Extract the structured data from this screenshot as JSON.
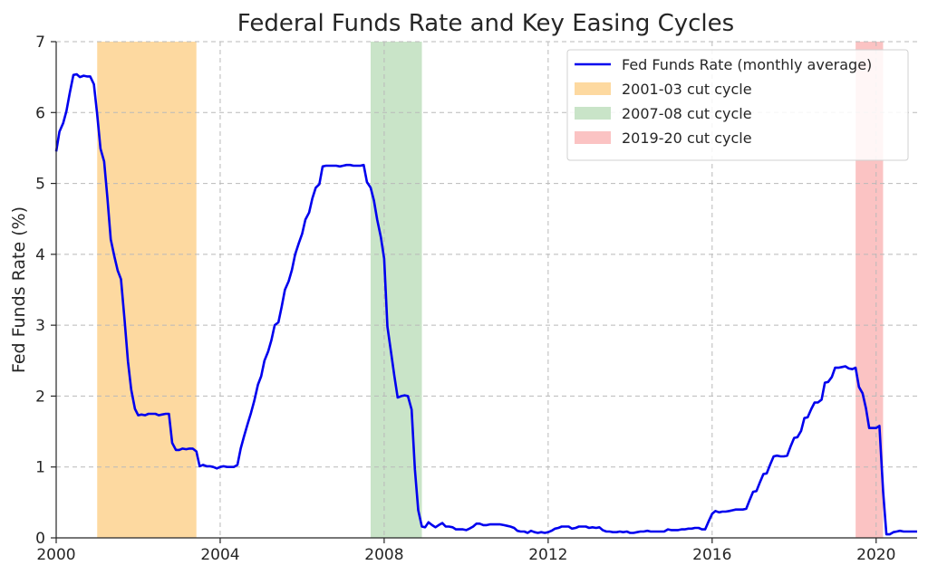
{
  "chart_data": {
    "type": "line",
    "title": "Federal Funds Rate and Key Easing Cycles",
    "xlabel": "",
    "ylabel": "Fed Funds Rate (%)",
    "xlim": [
      2000,
      2021
    ],
    "ylim": [
      0,
      7
    ],
    "x_ticks": [
      2000,
      2004,
      2008,
      2012,
      2016,
      2020
    ],
    "y_ticks": [
      0,
      1,
      2,
      3,
      4,
      5,
      6,
      7
    ],
    "grid": true,
    "legend_position": "top-right",
    "series": [
      {
        "name": "Fed Funds Rate (monthly average)",
        "color": "#0000ee",
        "points": [
          [
            2000.0,
            5.45
          ],
          [
            2000.08,
            5.73
          ],
          [
            2000.17,
            5.85
          ],
          [
            2000.25,
            6.02
          ],
          [
            2000.33,
            6.27
          ],
          [
            2000.42,
            6.53
          ],
          [
            2000.5,
            6.54
          ],
          [
            2000.58,
            6.5
          ],
          [
            2000.67,
            6.52
          ],
          [
            2000.75,
            6.51
          ],
          [
            2000.83,
            6.51
          ],
          [
            2000.92,
            6.4
          ],
          [
            2001.0,
            5.98
          ],
          [
            2001.08,
            5.49
          ],
          [
            2001.17,
            5.31
          ],
          [
            2001.25,
            4.8
          ],
          [
            2001.33,
            4.21
          ],
          [
            2001.42,
            3.97
          ],
          [
            2001.5,
            3.77
          ],
          [
            2001.58,
            3.65
          ],
          [
            2001.67,
            3.07
          ],
          [
            2001.75,
            2.49
          ],
          [
            2001.83,
            2.09
          ],
          [
            2001.92,
            1.82
          ],
          [
            2002.0,
            1.73
          ],
          [
            2002.08,
            1.74
          ],
          [
            2002.17,
            1.73
          ],
          [
            2002.25,
            1.75
          ],
          [
            2002.33,
            1.75
          ],
          [
            2002.42,
            1.75
          ],
          [
            2002.5,
            1.73
          ],
          [
            2002.58,
            1.74
          ],
          [
            2002.67,
            1.75
          ],
          [
            2002.75,
            1.75
          ],
          [
            2002.83,
            1.34
          ],
          [
            2002.92,
            1.24
          ],
          [
            2003.0,
            1.24
          ],
          [
            2003.08,
            1.26
          ],
          [
            2003.17,
            1.25
          ],
          [
            2003.25,
            1.26
          ],
          [
            2003.33,
            1.26
          ],
          [
            2003.42,
            1.22
          ],
          [
            2003.5,
            1.01
          ],
          [
            2003.58,
            1.03
          ],
          [
            2003.67,
            1.01
          ],
          [
            2003.75,
            1.01
          ],
          [
            2003.83,
            1.0
          ],
          [
            2003.92,
            0.98
          ],
          [
            2004.0,
            1.0
          ],
          [
            2004.08,
            1.01
          ],
          [
            2004.17,
            1.0
          ],
          [
            2004.25,
            1.0
          ],
          [
            2004.33,
            1.0
          ],
          [
            2004.42,
            1.03
          ],
          [
            2004.5,
            1.26
          ],
          [
            2004.58,
            1.43
          ],
          [
            2004.67,
            1.61
          ],
          [
            2004.75,
            1.76
          ],
          [
            2004.83,
            1.93
          ],
          [
            2004.92,
            2.16
          ],
          [
            2005.0,
            2.28
          ],
          [
            2005.08,
            2.5
          ],
          [
            2005.17,
            2.63
          ],
          [
            2005.25,
            2.79
          ],
          [
            2005.33,
            3.0
          ],
          [
            2005.42,
            3.04
          ],
          [
            2005.5,
            3.26
          ],
          [
            2005.58,
            3.5
          ],
          [
            2005.67,
            3.62
          ],
          [
            2005.75,
            3.78
          ],
          [
            2005.83,
            4.0
          ],
          [
            2005.92,
            4.16
          ],
          [
            2006.0,
            4.29
          ],
          [
            2006.08,
            4.49
          ],
          [
            2006.17,
            4.59
          ],
          [
            2006.25,
            4.79
          ],
          [
            2006.33,
            4.94
          ],
          [
            2006.42,
            4.99
          ],
          [
            2006.5,
            5.24
          ],
          [
            2006.58,
            5.25
          ],
          [
            2006.67,
            5.25
          ],
          [
            2006.75,
            5.25
          ],
          [
            2006.83,
            5.25
          ],
          [
            2006.92,
            5.24
          ],
          [
            2007.0,
            5.25
          ],
          [
            2007.08,
            5.26
          ],
          [
            2007.17,
            5.26
          ],
          [
            2007.25,
            5.25
          ],
          [
            2007.33,
            5.25
          ],
          [
            2007.42,
            5.25
          ],
          [
            2007.5,
            5.26
          ],
          [
            2007.58,
            5.02
          ],
          [
            2007.67,
            4.94
          ],
          [
            2007.75,
            4.76
          ],
          [
            2007.83,
            4.49
          ],
          [
            2007.92,
            4.24
          ],
          [
            2008.0,
            3.94
          ],
          [
            2008.08,
            2.98
          ],
          [
            2008.17,
            2.61
          ],
          [
            2008.25,
            2.28
          ],
          [
            2008.33,
            1.98
          ],
          [
            2008.42,
            2.0
          ],
          [
            2008.5,
            2.01
          ],
          [
            2008.58,
            2.0
          ],
          [
            2008.67,
            1.81
          ],
          [
            2008.75,
            0.97
          ],
          [
            2008.83,
            0.39
          ],
          [
            2008.92,
            0.16
          ],
          [
            2009.0,
            0.15
          ],
          [
            2009.08,
            0.22
          ],
          [
            2009.17,
            0.18
          ],
          [
            2009.25,
            0.15
          ],
          [
            2009.33,
            0.18
          ],
          [
            2009.42,
            0.21
          ],
          [
            2009.5,
            0.16
          ],
          [
            2009.58,
            0.16
          ],
          [
            2009.67,
            0.15
          ],
          [
            2009.75,
            0.12
          ],
          [
            2009.83,
            0.12
          ],
          [
            2009.92,
            0.12
          ],
          [
            2010.0,
            0.11
          ],
          [
            2010.08,
            0.13
          ],
          [
            2010.17,
            0.16
          ],
          [
            2010.25,
            0.2
          ],
          [
            2010.33,
            0.2
          ],
          [
            2010.42,
            0.18
          ],
          [
            2010.5,
            0.18
          ],
          [
            2010.58,
            0.19
          ],
          [
            2010.67,
            0.19
          ],
          [
            2010.75,
            0.19
          ],
          [
            2010.83,
            0.19
          ],
          [
            2010.92,
            0.18
          ],
          [
            2011.0,
            0.17
          ],
          [
            2011.08,
            0.16
          ],
          [
            2011.17,
            0.14
          ],
          [
            2011.25,
            0.1
          ],
          [
            2011.33,
            0.09
          ],
          [
            2011.42,
            0.09
          ],
          [
            2011.5,
            0.07
          ],
          [
            2011.58,
            0.1
          ],
          [
            2011.67,
            0.08
          ],
          [
            2011.75,
            0.07
          ],
          [
            2011.83,
            0.08
          ],
          [
            2011.92,
            0.07
          ],
          [
            2012.0,
            0.08
          ],
          [
            2012.08,
            0.1
          ],
          [
            2012.17,
            0.13
          ],
          [
            2012.25,
            0.14
          ],
          [
            2012.33,
            0.16
          ],
          [
            2012.42,
            0.16
          ],
          [
            2012.5,
            0.16
          ],
          [
            2012.58,
            0.13
          ],
          [
            2012.67,
            0.14
          ],
          [
            2012.75,
            0.16
          ],
          [
            2012.83,
            0.16
          ],
          [
            2012.92,
            0.16
          ],
          [
            2013.0,
            0.14
          ],
          [
            2013.08,
            0.15
          ],
          [
            2013.17,
            0.14
          ],
          [
            2013.25,
            0.15
          ],
          [
            2013.33,
            0.11
          ],
          [
            2013.42,
            0.09
          ],
          [
            2013.5,
            0.09
          ],
          [
            2013.58,
            0.08
          ],
          [
            2013.67,
            0.08
          ],
          [
            2013.75,
            0.09
          ],
          [
            2013.83,
            0.08
          ],
          [
            2013.92,
            0.09
          ],
          [
            2014.0,
            0.07
          ],
          [
            2014.08,
            0.07
          ],
          [
            2014.17,
            0.08
          ],
          [
            2014.25,
            0.09
          ],
          [
            2014.33,
            0.09
          ],
          [
            2014.42,
            0.1
          ],
          [
            2014.5,
            0.09
          ],
          [
            2014.58,
            0.09
          ],
          [
            2014.67,
            0.09
          ],
          [
            2014.75,
            0.09
          ],
          [
            2014.83,
            0.09
          ],
          [
            2014.92,
            0.12
          ],
          [
            2015.0,
            0.11
          ],
          [
            2015.08,
            0.11
          ],
          [
            2015.17,
            0.11
          ],
          [
            2015.25,
            0.12
          ],
          [
            2015.33,
            0.12
          ],
          [
            2015.42,
            0.13
          ],
          [
            2015.5,
            0.13
          ],
          [
            2015.58,
            0.14
          ],
          [
            2015.67,
            0.14
          ],
          [
            2015.75,
            0.12
          ],
          [
            2015.83,
            0.12
          ],
          [
            2015.92,
            0.24
          ],
          [
            2016.0,
            0.34
          ],
          [
            2016.08,
            0.38
          ],
          [
            2016.17,
            0.36
          ],
          [
            2016.25,
            0.37
          ],
          [
            2016.33,
            0.37
          ],
          [
            2016.42,
            0.38
          ],
          [
            2016.5,
            0.39
          ],
          [
            2016.58,
            0.4
          ],
          [
            2016.67,
            0.4
          ],
          [
            2016.75,
            0.4
          ],
          [
            2016.83,
            0.41
          ],
          [
            2016.92,
            0.54
          ],
          [
            2017.0,
            0.65
          ],
          [
            2017.08,
            0.66
          ],
          [
            2017.17,
            0.79
          ],
          [
            2017.25,
            0.9
          ],
          [
            2017.33,
            0.91
          ],
          [
            2017.42,
            1.04
          ],
          [
            2017.5,
            1.15
          ],
          [
            2017.58,
            1.16
          ],
          [
            2017.67,
            1.15
          ],
          [
            2017.75,
            1.15
          ],
          [
            2017.83,
            1.16
          ],
          [
            2017.92,
            1.3
          ],
          [
            2018.0,
            1.41
          ],
          [
            2018.08,
            1.42
          ],
          [
            2018.17,
            1.51
          ],
          [
            2018.25,
            1.69
          ],
          [
            2018.33,
            1.7
          ],
          [
            2018.42,
            1.82
          ],
          [
            2018.5,
            1.91
          ],
          [
            2018.58,
            1.91
          ],
          [
            2018.67,
            1.95
          ],
          [
            2018.75,
            2.19
          ],
          [
            2018.83,
            2.2
          ],
          [
            2018.92,
            2.27
          ],
          [
            2019.0,
            2.4
          ],
          [
            2019.08,
            2.4
          ],
          [
            2019.17,
            2.41
          ],
          [
            2019.25,
            2.42
          ],
          [
            2019.33,
            2.39
          ],
          [
            2019.42,
            2.38
          ],
          [
            2019.5,
            2.4
          ],
          [
            2019.58,
            2.13
          ],
          [
            2019.67,
            2.04
          ],
          [
            2019.75,
            1.83
          ],
          [
            2019.83,
            1.55
          ],
          [
            2019.92,
            1.55
          ],
          [
            2020.0,
            1.55
          ],
          [
            2020.08,
            1.58
          ],
          [
            2020.17,
            0.65
          ],
          [
            2020.25,
            0.05
          ],
          [
            2020.33,
            0.05
          ],
          [
            2020.42,
            0.08
          ],
          [
            2020.5,
            0.09
          ],
          [
            2020.58,
            0.1
          ],
          [
            2020.67,
            0.09
          ],
          [
            2020.75,
            0.09
          ],
          [
            2020.83,
            0.09
          ],
          [
            2020.92,
            0.09
          ],
          [
            2021.0,
            0.09
          ]
        ]
      }
    ],
    "shaded_regions": [
      {
        "name": "2001-03 cut cycle",
        "start": 2001.0,
        "end": 2003.42,
        "color": "#fdd9a0"
      },
      {
        "name": "2007-08 cut cycle",
        "start": 2007.67,
        "end": 2008.92,
        "color": "#c9e4c8"
      },
      {
        "name": "2019-20 cut cycle",
        "start": 2019.5,
        "end": 2020.17,
        "color": "#fbc3c3"
      }
    ]
  }
}
